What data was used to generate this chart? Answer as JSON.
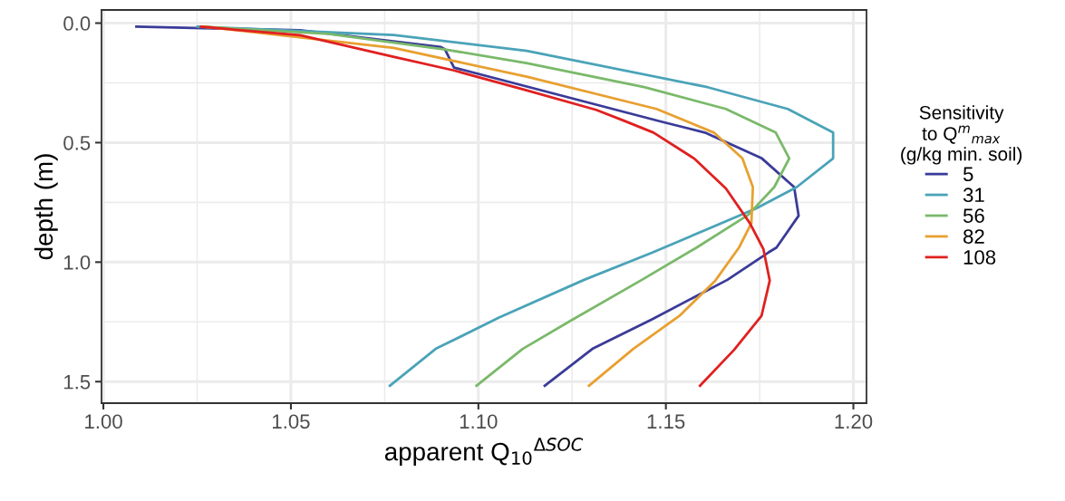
{
  "chart_data": {
    "type": "line",
    "xlabel": "apparent Q$_{10}$$^{ΔSOC}$",
    "ylabel": "depth (m)",
    "legend_title": "Sensitivity\nto Q$^{m}$$_{max}$\n(g/kg min. soil)",
    "legend": "right",
    "grid": true,
    "xlim": [
      0.9995,
      1.2035
    ],
    "ylim": [
      1.59,
      -0.055
    ],
    "xticks": [
      {
        "value": 1.0,
        "label": "1.00"
      },
      {
        "value": 1.05,
        "label": "1.05"
      },
      {
        "value": 1.1,
        "label": "1.10"
      },
      {
        "value": 1.15,
        "label": "1.15"
      },
      {
        "value": 1.2,
        "label": "1.20"
      }
    ],
    "yticks": [
      {
        "value": 0,
        "label": "0.0"
      },
      {
        "value": 0.5,
        "label": "0.5"
      },
      {
        "value": 1.0,
        "label": "1.0"
      },
      {
        "value": 1.5,
        "label": "1.5"
      }
    ],
    "series": [
      {
        "name": "5",
        "color": "#3a3b98",
        "x": [
          1.0088,
          1.0525,
          1.09,
          1.0911,
          1.0935,
          1.149,
          1.1604,
          1.1756,
          1.1842,
          1.1854,
          1.1795,
          1.1773,
          1.1664,
          1.1463,
          1.1304,
          1.1177
        ],
        "values": [
          0.015,
          0.03,
          0.1,
          0.11,
          0.186,
          0.413,
          0.458,
          0.566,
          0.686,
          0.806,
          0.939,
          0.96,
          1.074,
          1.239,
          1.363,
          1.517
        ]
      },
      {
        "name": "31",
        "color": "#4aa3b8",
        "x": [
          1.0251,
          1.0774,
          1.1129,
          1.1611,
          1.1825,
          1.1946,
          1.1946,
          1.1849,
          1.1741,
          1.1464,
          1.1282,
          1.1055,
          1.0886,
          1.0764
        ],
        "values": [
          0.015,
          0.05,
          0.116,
          0.268,
          0.359,
          0.458,
          0.566,
          0.686,
          0.775,
          0.96,
          1.074,
          1.232,
          1.363,
          1.517
        ]
      },
      {
        "name": "56",
        "color": "#7ab96a",
        "x": [
          1.026,
          1.06,
          1.0911,
          1.1128,
          1.1442,
          1.166,
          1.1793,
          1.1829,
          1.1789,
          1.1719,
          1.1582,
          1.1436,
          1.1245,
          1.1118,
          1.0995
        ],
        "values": [
          0.015,
          0.045,
          0.11,
          0.167,
          0.268,
          0.359,
          0.458,
          0.566,
          0.686,
          0.803,
          0.939,
          1.074,
          1.246,
          1.363,
          1.517
        ]
      },
      {
        "name": "82",
        "color": "#e8a030",
        "x": [
          1.027,
          1.0774,
          1.1129,
          1.1475,
          1.1628,
          1.1704,
          1.1732,
          1.1728,
          1.1695,
          1.1632,
          1.1536,
          1.1413,
          1.1295
        ],
        "values": [
          0.015,
          0.104,
          0.224,
          0.359,
          0.458,
          0.566,
          0.686,
          0.837,
          0.939,
          1.077,
          1.225,
          1.363,
          1.517
        ]
      },
      {
        "name": "108",
        "color": "#e02020",
        "x": [
          1.026,
          1.0525,
          1.0773,
          1.0935,
          1.1128,
          1.1314,
          1.1386,
          1.1467,
          1.1575,
          1.166,
          1.1724,
          1.176,
          1.1777,
          1.1755,
          1.1682,
          1.1591
        ],
        "values": [
          0.015,
          0.051,
          0.141,
          0.198,
          0.281,
          0.363,
          0.407,
          0.458,
          0.566,
          0.692,
          0.837,
          0.945,
          1.077,
          1.225,
          1.367,
          1.517
        ]
      }
    ]
  }
}
